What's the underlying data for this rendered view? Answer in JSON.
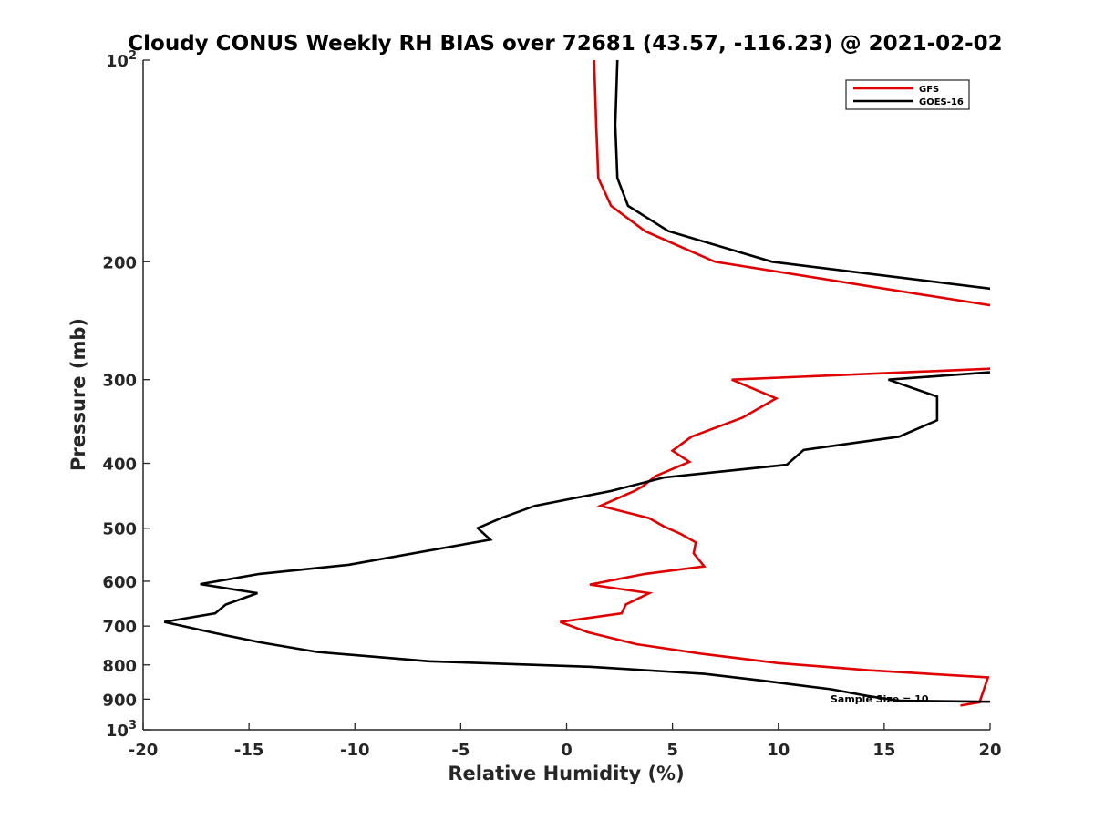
{
  "chart_data": {
    "type": "line",
    "title": "Cloudy CONUS Weekly RH BIAS over 72681 (43.57, -116.23) @ 2021-02-02",
    "xlabel": "Relative Humidity (%)",
    "ylabel": "Pressure (mb)",
    "xlim": [
      -20,
      20
    ],
    "ylim": [
      100,
      1000
    ],
    "y_scale": "log",
    "y_reversed": true,
    "x_ticks": [
      "-20",
      "-15",
      "-10",
      "-5",
      "0",
      "5",
      "10",
      "15",
      "20"
    ],
    "y_ticks": [
      {
        "value": 100,
        "label": "10",
        "sup": "2"
      },
      {
        "value": 200,
        "label": "200"
      },
      {
        "value": 300,
        "label": "300"
      },
      {
        "value": 400,
        "label": "400"
      },
      {
        "value": 500,
        "label": "500"
      },
      {
        "value": 600,
        "label": "600"
      },
      {
        "value": 700,
        "label": "700"
      },
      {
        "value": 800,
        "label": "800"
      },
      {
        "value": 900,
        "label": "900"
      },
      {
        "value": 1000,
        "label": "10",
        "sup": "3"
      }
    ],
    "grid": false,
    "legend_position": "top-right",
    "annotation": "Sample Size = 10",
    "series": [
      {
        "name": "GFS",
        "color": "#e00000",
        "points": [
          [
            1.3,
            100
          ],
          [
            1.4,
            125
          ],
          [
            1.5,
            150
          ],
          [
            2.1,
            165
          ],
          [
            3.7,
            180
          ],
          [
            7.0,
            200
          ],
          [
            17.2,
            225
          ],
          [
            21.0,
            235
          ],
          [
            21.0,
            288
          ],
          [
            7.8,
            300
          ],
          [
            9.9,
            320
          ],
          [
            8.3,
            342
          ],
          [
            5.9,
            365
          ],
          [
            5.0,
            383
          ],
          [
            5.8,
            398
          ],
          [
            4.2,
            418
          ],
          [
            3.6,
            433
          ],
          [
            3.2,
            440
          ],
          [
            1.6,
            463
          ],
          [
            3.9,
            483
          ],
          [
            4.6,
            497
          ],
          [
            5.4,
            510
          ],
          [
            6.1,
            525
          ],
          [
            6.0,
            545
          ],
          [
            6.5,
            570
          ],
          [
            3.7,
            585
          ],
          [
            1.1,
            607
          ],
          [
            3.9,
            625
          ],
          [
            2.8,
            650
          ],
          [
            2.6,
            670
          ],
          [
            -0.3,
            690
          ],
          [
            1.0,
            715
          ],
          [
            3.3,
            745
          ],
          [
            6.4,
            770
          ],
          [
            10.0,
            795
          ],
          [
            14.3,
            815
          ],
          [
            19.9,
            835
          ],
          [
            19.5,
            910
          ],
          [
            18.6,
            920
          ]
        ]
      },
      {
        "name": "GOES-16",
        "color": "#000000",
        "points": [
          [
            2.4,
            100
          ],
          [
            2.3,
            125
          ],
          [
            2.4,
            150
          ],
          [
            2.9,
            165
          ],
          [
            4.8,
            180
          ],
          [
            9.7,
            200
          ],
          [
            20.3,
            220
          ],
          [
            20.3,
            292
          ],
          [
            15.2,
            300
          ],
          [
            17.5,
            318
          ],
          [
            17.5,
            345
          ],
          [
            15.7,
            365
          ],
          [
            11.2,
            382
          ],
          [
            10.4,
            402
          ],
          [
            4.6,
            420
          ],
          [
            2.1,
            440
          ],
          [
            -1.5,
            463
          ],
          [
            -3.1,
            483
          ],
          [
            -4.2,
            500
          ],
          [
            -3.6,
            520
          ],
          [
            -10.3,
            567
          ],
          [
            -14.5,
            585
          ],
          [
            -17.3,
            606
          ],
          [
            -14.6,
            625
          ],
          [
            -16.1,
            650
          ],
          [
            -16.6,
            670
          ],
          [
            -19.0,
            690
          ],
          [
            -16.8,
            715
          ],
          [
            -14.5,
            740
          ],
          [
            -11.8,
            765
          ],
          [
            -6.5,
            790
          ],
          [
            1.1,
            805
          ],
          [
            6.5,
            825
          ],
          [
            9.3,
            845
          ],
          [
            12.5,
            870
          ],
          [
            14.2,
            890
          ],
          [
            15.7,
            905
          ],
          [
            20.2,
            908
          ]
        ]
      }
    ]
  }
}
